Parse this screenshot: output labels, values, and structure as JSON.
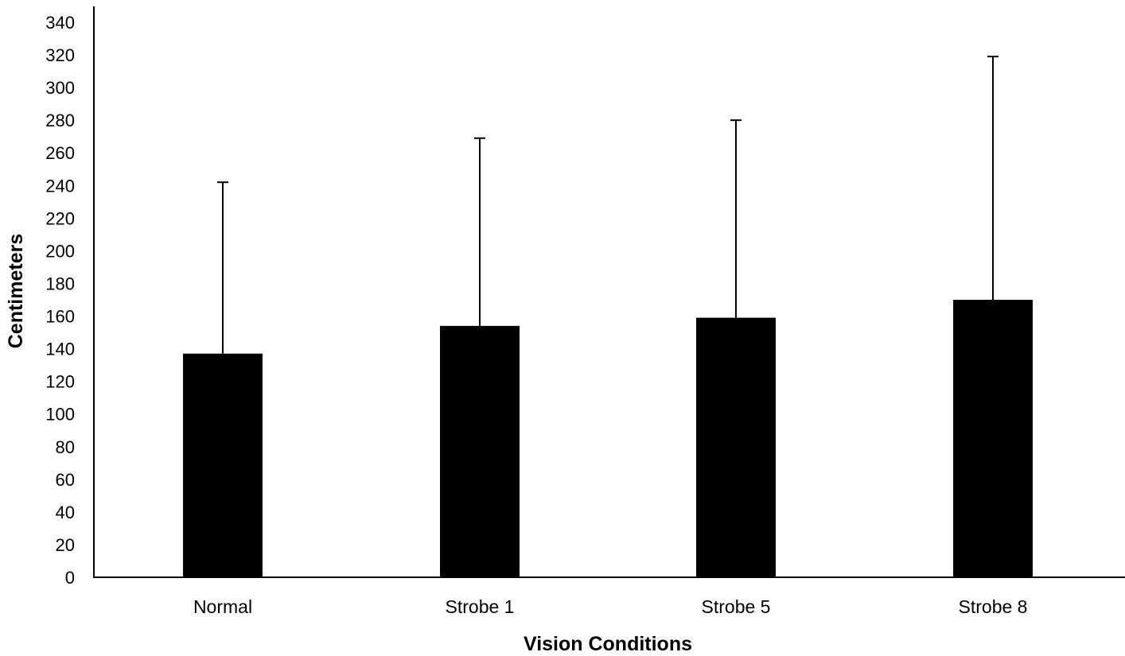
{
  "chart_data": {
    "type": "bar",
    "title": "",
    "xlabel": "Vision Conditions",
    "ylabel": "Centimeters",
    "categories": [
      "Normal",
      "Strobe 1",
      "Strobe 5",
      "Strobe 8"
    ],
    "values": [
      137,
      154,
      159,
      170
    ],
    "error_upper": [
      242,
      269,
      280,
      319
    ],
    "ylim": [
      0,
      340
    ],
    "yticks": [
      "0",
      "20",
      "40",
      "60",
      "80",
      "100",
      "120",
      "140",
      "160",
      "180",
      "200",
      "220",
      "240",
      "260",
      "280",
      "300",
      "320",
      "340"
    ],
    "grid": false,
    "legend": "none",
    "bar_color": "#000000",
    "axis_color": "#000000"
  }
}
